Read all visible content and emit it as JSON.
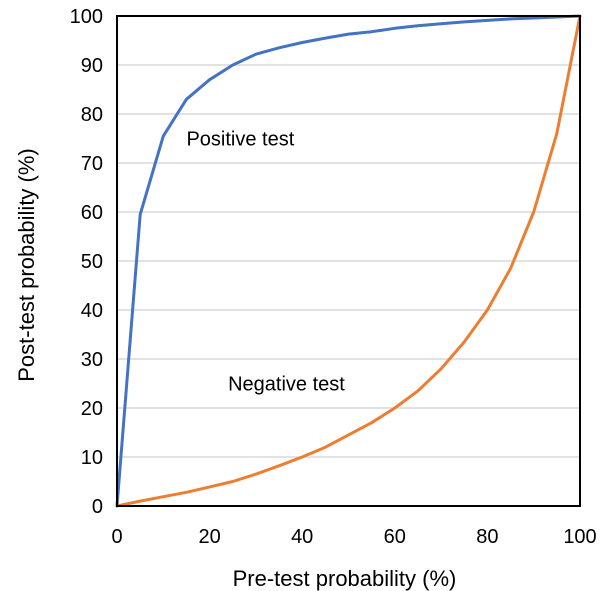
{
  "chart_data": {
    "type": "line",
    "title": "",
    "xlabel": "Pre-test probability (%)",
    "ylabel": "Post-test probability (%)",
    "xlim": [
      0,
      100
    ],
    "ylim": [
      0,
      100
    ],
    "xticks": [
      0,
      20,
      40,
      60,
      80,
      100
    ],
    "yticks": [
      0,
      10,
      20,
      30,
      40,
      50,
      60,
      70,
      80,
      90,
      100
    ],
    "grid": "horizontal",
    "legend": "none",
    "series": [
      {
        "color": "#4472C4",
        "points": [
          [
            0,
            0
          ],
          [
            5,
            59.5
          ],
          [
            10,
            75.5
          ],
          [
            15,
            83
          ],
          [
            20,
            87
          ],
          [
            25,
            90
          ],
          [
            30,
            92.2
          ],
          [
            35,
            93.5
          ],
          [
            40,
            94.6
          ],
          [
            45,
            95.5
          ],
          [
            50,
            96.3
          ],
          [
            55,
            96.8
          ],
          [
            60,
            97.5
          ],
          [
            65,
            98
          ],
          [
            70,
            98.4
          ],
          [
            75,
            98.8
          ],
          [
            80,
            99.1
          ],
          [
            85,
            99.4
          ],
          [
            90,
            99.6
          ],
          [
            95,
            99.8
          ],
          [
            100,
            100
          ]
        ]
      },
      {
        "color": "#ED7D31",
        "points": [
          [
            0,
            0
          ],
          [
            5,
            1
          ],
          [
            10,
            1.9
          ],
          [
            15,
            2.8
          ],
          [
            20,
            3.9
          ],
          [
            25,
            5
          ],
          [
            30,
            6.5
          ],
          [
            35,
            8.2
          ],
          [
            40,
            10
          ],
          [
            45,
            12
          ],
          [
            50,
            14.5
          ],
          [
            55,
            17
          ],
          [
            60,
            20
          ],
          [
            65,
            23.5
          ],
          [
            70,
            28
          ],
          [
            75,
            33.5
          ],
          [
            80,
            40
          ],
          [
            85,
            48.5
          ],
          [
            90,
            60
          ],
          [
            95,
            76
          ],
          [
            100,
            100
          ]
        ]
      }
    ],
    "annotations": [
      {
        "text": "Positive test",
        "x": 15,
        "y": 75
      },
      {
        "text": "Negative test",
        "x": 24,
        "y": 25
      }
    ]
  }
}
